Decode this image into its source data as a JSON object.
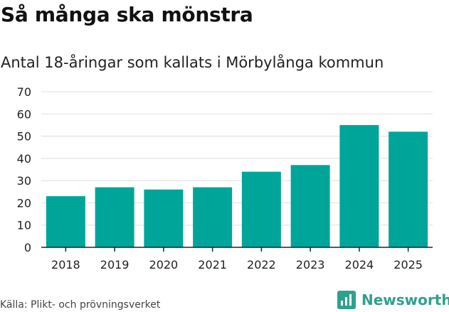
{
  "header": {
    "title": "Så många ska mönstra",
    "subtitle": "Antal 18-åringar som kallats i Mörbylånga kommun"
  },
  "footer": {
    "source": "Källa: Plikt- och prövningsverket",
    "brand": "Newsworthy"
  },
  "colors": {
    "bar": "#00a59a",
    "grid": "#dddddd",
    "axis": "#222222",
    "brand": "#30a08f"
  },
  "chart_data": {
    "type": "bar",
    "title": "",
    "xlabel": "",
    "ylabel": "",
    "categories": [
      "2018",
      "2019",
      "2020",
      "2021",
      "2022",
      "2023",
      "2024",
      "2025"
    ],
    "values": [
      23,
      27,
      26,
      27,
      34,
      37,
      55,
      52
    ],
    "ylim": [
      0,
      70
    ],
    "yticks": [
      0,
      10,
      20,
      30,
      40,
      50,
      60,
      70
    ],
    "grid": true,
    "legend": "none"
  }
}
